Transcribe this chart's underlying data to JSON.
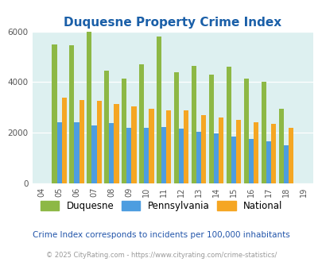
{
  "title": "Duquesne Property Crime Index",
  "years": [
    "04",
    "05",
    "06",
    "07",
    "08",
    "09",
    "10",
    "11",
    "12",
    "13",
    "14",
    "15",
    "16",
    "17",
    "18",
    "19"
  ],
  "duquesne": [
    0,
    5500,
    5450,
    6000,
    4450,
    4150,
    4700,
    5800,
    4400,
    4650,
    4300,
    4600,
    4150,
    4000,
    2950,
    0
  ],
  "pennsylvania": [
    0,
    2400,
    2400,
    2300,
    2380,
    2200,
    2200,
    2230,
    2170,
    2050,
    1970,
    1850,
    1770,
    1660,
    1510,
    0
  ],
  "national": [
    0,
    3400,
    3300,
    3250,
    3150,
    3030,
    2950,
    2880,
    2870,
    2700,
    2600,
    2500,
    2420,
    2360,
    2210,
    0
  ],
  "duquesne_color": "#8db845",
  "pennsylvania_color": "#4d9de0",
  "national_color": "#f5a623",
  "bg_color": "#ddf0f0",
  "ylim": [
    0,
    6000
  ],
  "yticks": [
    0,
    2000,
    4000,
    6000
  ],
  "legend_labels": [
    "Duquesne",
    "Pennsylvania",
    "National"
  ],
  "footnote1": "Crime Index corresponds to incidents per 100,000 inhabitants",
  "footnote2": "© 2025 CityRating.com - https://www.cityrating.com/crime-statistics/",
  "title_color": "#1a5fa8",
  "footnote1_color": "#2255aa",
  "footnote2_color": "#999999",
  "bar_width": 0.28
}
